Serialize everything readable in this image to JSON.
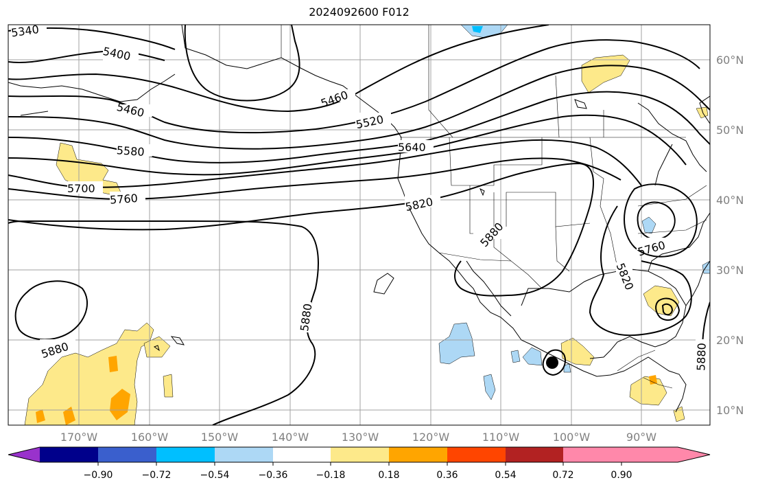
{
  "title": "2024092600 F012",
  "lat_labels": [
    "60°N",
    "50°N",
    "40°N",
    "30°N",
    "20°N",
    "10°N"
  ],
  "lon_labels": [
    "170°W",
    "160°W",
    "150°W",
    "140°W",
    "130°W",
    "120°W",
    "110°W",
    "100°W",
    "90°W"
  ],
  "colorbar": {
    "colors": [
      "#9932cc",
      "#00008b",
      "#3a5fcd",
      "#00bfff",
      "#add8f5",
      "#ffffff",
      "#fde98a",
      "#ffa500",
      "#ff4500",
      "#b22222",
      "#ff88aa"
    ],
    "tick_labels": [
      "−0.90",
      "−0.72",
      "−0.54",
      "−0.36",
      "−0.18",
      "0.18",
      "0.36",
      "0.54",
      "0.72",
      "0.90"
    ]
  },
  "contour_labels": [
    "5340",
    "5400",
    "5460",
    "5460",
    "5520",
    "5580",
    "5640",
    "5700",
    "5760",
    "5820",
    "5880",
    "5880",
    "5880",
    "5760",
    "5820",
    "5880"
  ],
  "colors": {
    "positive_fill": "#fde98a",
    "negative_fill": "#add8f5",
    "strong_positive": "#ffa500",
    "strong_negative": "#00bfff"
  }
}
